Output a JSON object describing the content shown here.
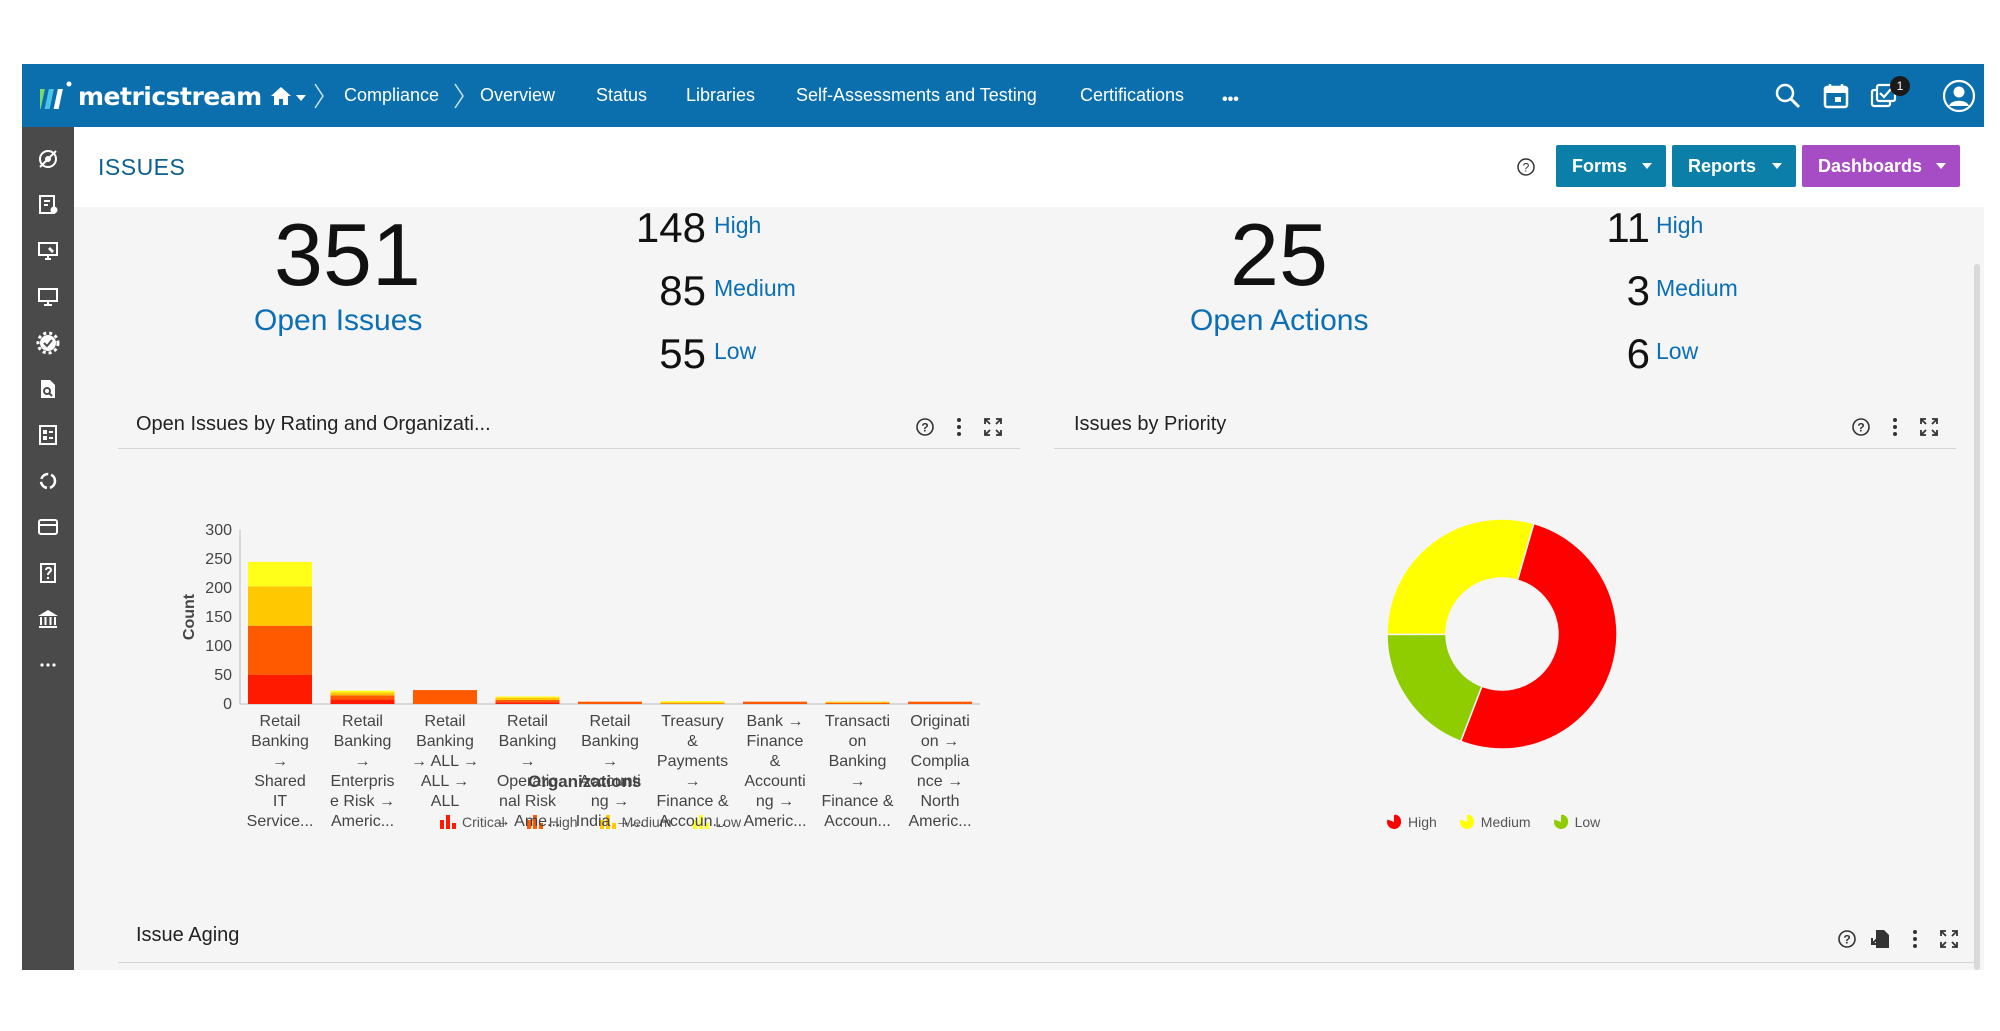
{
  "nav": {
    "logo_text": "metricstream",
    "items": [
      "Compliance",
      "Overview",
      "Status",
      "Libraries",
      "Self-Assessments and Testing",
      "Certifications"
    ],
    "more": "•••",
    "notification_count": "1"
  },
  "header": {
    "title": "ISSUES",
    "buttons": [
      {
        "label": "Forms",
        "color": "#0b7fa8"
      },
      {
        "label": "Reports",
        "color": "#0b7fa8"
      },
      {
        "label": "Dashboards",
        "color": "#a64cc4"
      }
    ]
  },
  "kpis": {
    "issues": {
      "total": "351",
      "label": "Open Issues",
      "breakdown": [
        {
          "value": "148",
          "label": "High"
        },
        {
          "value": "85",
          "label": "Medium"
        },
        {
          "value": "55",
          "label": "Low"
        }
      ]
    },
    "actions": {
      "total": "25",
      "label": "Open Actions",
      "breakdown": [
        {
          "value": "11",
          "label": "High"
        },
        {
          "value": "3",
          "label": "Medium"
        },
        {
          "value": "6",
          "label": "Low"
        }
      ]
    }
  },
  "panels": {
    "rating_org": {
      "title": "Open Issues by Rating and Organizati..."
    },
    "priority": {
      "title": "Issues by Priority"
    },
    "aging": {
      "title": "Issue Aging"
    }
  },
  "chart_data": [
    {
      "type": "bar",
      "stacked": true,
      "ylabel": "Count",
      "xlabel": "Organizations",
      "ylim": [
        0,
        300
      ],
      "yticks": [
        0,
        50,
        100,
        150,
        200,
        250,
        300
      ],
      "categories": [
        "Retail\nBanking\n→\nShared\nIT\nService...",
        "Retail\nBanking\n→\nEnterpris\ne Risk →\nAmeric...",
        "Retail\nBanking\n→ ALL →\nALL →\nALL",
        "Retail\nBanking\n→\nOperatio\nnal Risk\n→ Ame...",
        "Retail\nBanking\n→\nAccounti\nng →\nIndia →...",
        "Treasury\n&\nPayments\n→\nFinance &\nAccoun...",
        "Bank →\nFinance\n&\nAccounti\nng →\nAmeric...",
        "Transacti\non\nBanking\n→\nFinance &\nAccoun...",
        "Originati\non →\nComplia\nnce →\nNorth\nAmeric..."
      ],
      "series": [
        {
          "name": "Critical",
          "color": "#ff1a00",
          "values": [
            50,
            8,
            0,
            3,
            0,
            0,
            0,
            0,
            0
          ]
        },
        {
          "name": "High",
          "color": "#ff5a00",
          "values": [
            85,
            7,
            24,
            4,
            4,
            1,
            4,
            2,
            4
          ]
        },
        {
          "name": "Medium",
          "color": "#ffc800",
          "values": [
            68,
            5,
            0,
            4,
            0,
            2,
            0,
            2,
            0
          ]
        },
        {
          "name": "Low",
          "color": "#ffff1a",
          "values": [
            42,
            3,
            0,
            2,
            0,
            2,
            0,
            0,
            0
          ]
        }
      ],
      "legend_position": "bottom"
    },
    {
      "type": "pie",
      "donut": true,
      "series": [
        {
          "name": "High",
          "color": "#ff0000",
          "value": 148
        },
        {
          "name": "Low",
          "color": "#8fcc00",
          "value": 55
        },
        {
          "name": "Medium",
          "color": "#ffff00",
          "value": 85
        }
      ],
      "legend": [
        "High",
        "Medium",
        "Low"
      ],
      "legend_position": "bottom"
    }
  ]
}
